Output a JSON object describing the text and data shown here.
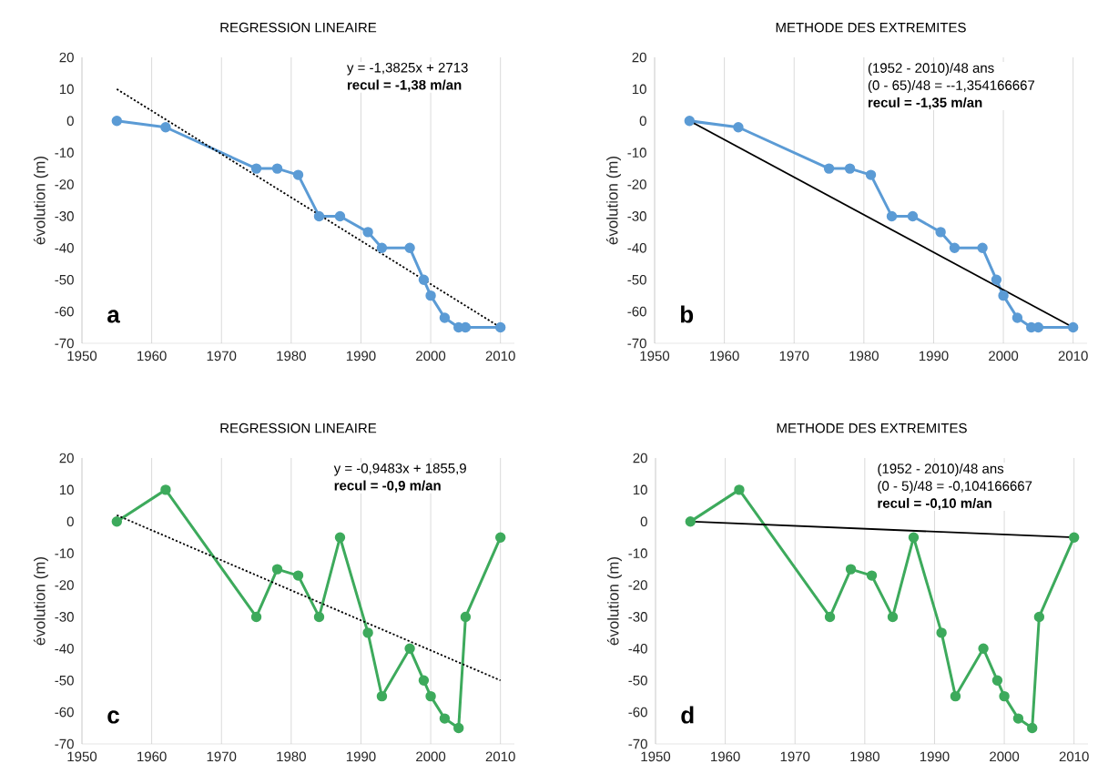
{
  "chart_data": [
    {
      "type": "line",
      "title": "REGRESSION LINEAIRE",
      "ylabel": "évolution (m)",
      "x": [
        1955,
        1962,
        1975,
        1978,
        1981,
        1984,
        1987,
        1991,
        1993,
        1997,
        1999,
        2000,
        2002,
        2004,
        2005,
        2010
      ],
      "xlim": [
        1950,
        2012
      ],
      "xticks": [
        1950,
        1960,
        1970,
        1980,
        1990,
        2000,
        2010
      ],
      "ylim": [
        -70,
        20
      ],
      "yticks": [
        -70,
        -60,
        -50,
        -40,
        -30,
        -20,
        -10,
        0,
        10,
        20
      ],
      "grid": "x",
      "marker": "circle",
      "line_style": "solid",
      "series": [
        {
          "color": "#5b9bd5",
          "values": [
            0,
            -2,
            -15,
            -15,
            -17,
            -30,
            -30,
            -35,
            -40,
            -40,
            -50,
            -55,
            -62,
            -65,
            -65,
            -65
          ]
        },
        {
          "color": "#000000",
          "values": [
            10,
            null,
            null,
            null,
            null,
            null,
            null,
            null,
            null,
            null,
            null,
            null,
            null,
            null,
            null,
            -65
          ],
          "marker": "none",
          "line_style": "dotted"
        }
      ],
      "annotations": [
        "y = -1,3825x + 2713",
        "recul = -1,38 m/an",
        "a"
      ]
    },
    {
      "type": "line",
      "title": "METHODE DES EXTREMITES",
      "ylabel": "évolution (m)",
      "x": [
        1955,
        1962,
        1975,
        1978,
        1981,
        1984,
        1987,
        1991,
        1993,
        1997,
        1999,
        2000,
        2002,
        2004,
        2005,
        2010
      ],
      "xlim": [
        1950,
        2012
      ],
      "xticks": [
        1950,
        1960,
        1970,
        1980,
        1990,
        2000,
        2010
      ],
      "ylim": [
        -70,
        20
      ],
      "yticks": [
        -70,
        -60,
        -50,
        -40,
        -30,
        -20,
        -10,
        0,
        10,
        20
      ],
      "grid": "x",
      "marker": "circle",
      "line_style": "solid",
      "series": [
        {
          "color": "#5b9bd5",
          "values": [
            0,
            -2,
            -15,
            -15,
            -17,
            -30,
            -30,
            -35,
            -40,
            -40,
            -50,
            -55,
            -62,
            -65,
            -65,
            -65
          ]
        },
        {
          "color": "#000000",
          "values": [
            0,
            null,
            null,
            null,
            null,
            null,
            null,
            null,
            null,
            null,
            null,
            null,
            null,
            null,
            null,
            -65
          ],
          "marker": "none",
          "line_style": "solid"
        }
      ],
      "annotations": [
        "(1952 - 2010)/48 ans",
        "(0 - 65)/48 = --1,354166667",
        "recul = -1,35 m/an",
        "b"
      ]
    },
    {
      "type": "line",
      "title": "REGRESSION LINEAIRE",
      "ylabel": "évolution (m)",
      "x": [
        1955,
        1962,
        1975,
        1978,
        1981,
        1984,
        1987,
        1991,
        1993,
        1997,
        1999,
        2000,
        2002,
        2004,
        2005,
        2010
      ],
      "xlim": [
        1950,
        2012
      ],
      "xticks": [
        1950,
        1960,
        1970,
        1980,
        1990,
        2000,
        2010
      ],
      "ylim": [
        -70,
        20
      ],
      "yticks": [
        -70,
        -60,
        -50,
        -40,
        -30,
        -20,
        -10,
        0,
        10,
        20
      ],
      "grid": "x",
      "marker": "circle",
      "line_style": "solid",
      "series": [
        {
          "color": "#3daa5c",
          "values": [
            0,
            10,
            -30,
            -15,
            -17,
            -30,
            -5,
            -35,
            -55,
            -40,
            -50,
            -55,
            -62,
            -65,
            -30,
            -5
          ]
        },
        {
          "color": "#000000",
          "values": [
            2,
            null,
            null,
            null,
            null,
            null,
            null,
            null,
            null,
            null,
            null,
            null,
            null,
            null,
            null,
            -50
          ],
          "marker": "none",
          "line_style": "dotted"
        }
      ],
      "annotations": [
        "y = -0,9483x + 1855,9",
        "recul = -0,9 m/an",
        "c"
      ]
    },
    {
      "type": "line",
      "title": "METHODE DES EXTREMITES",
      "ylabel": "évolution (m)",
      "x": [
        1955,
        1962,
        1975,
        1978,
        1981,
        1984,
        1987,
        1991,
        1993,
        1997,
        1999,
        2000,
        2002,
        2004,
        2005,
        2010
      ],
      "xlim": [
        1950,
        2012
      ],
      "xticks": [
        1950,
        1960,
        1970,
        1980,
        1990,
        2000,
        2010
      ],
      "ylim": [
        -70,
        20
      ],
      "yticks": [
        -70,
        -60,
        -50,
        -40,
        -30,
        -20,
        -10,
        0,
        10,
        20
      ],
      "grid": "x",
      "marker": "circle",
      "line_style": "solid",
      "series": [
        {
          "color": "#3daa5c",
          "values": [
            0,
            10,
            -30,
            -15,
            -17,
            -30,
            -5,
            -35,
            -55,
            -40,
            -50,
            -55,
            -62,
            -65,
            -30,
            -5
          ]
        },
        {
          "color": "#000000",
          "values": [
            0,
            null,
            null,
            null,
            null,
            null,
            null,
            null,
            null,
            null,
            null,
            null,
            null,
            null,
            null,
            -5
          ],
          "marker": "none",
          "line_style": "solid"
        }
      ],
      "annotations": [
        "(1952 - 2010)/48 ans",
        "(0 - 5)/48 = -0,104166667",
        "recul = -0,10 m/an",
        "d"
      ]
    }
  ]
}
